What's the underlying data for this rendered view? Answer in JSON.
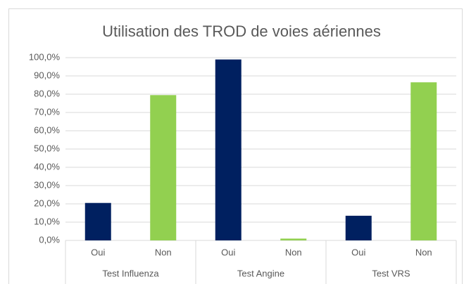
{
  "chart_data": {
    "type": "bar",
    "title": "Utilisation des TROD de voies aériennes",
    "categories": [
      "Oui",
      "Non",
      "Oui",
      "Non",
      "Oui",
      "Non"
    ],
    "groups": [
      "Test Influenza",
      "Test Angine",
      "Test VRS"
    ],
    "values": [
      20.5,
      79.5,
      99,
      1,
      13.5,
      86.5
    ],
    "colors": [
      "#002060",
      "#92d050",
      "#002060",
      "#92d050",
      "#002060",
      "#92d050"
    ],
    "ylim": [
      0,
      100
    ],
    "yticks": [
      {
        "value": 0,
        "label": "0,0%"
      },
      {
        "value": 10,
        "label": "10,0%"
      },
      {
        "value": 20,
        "label": "20,0%"
      },
      {
        "value": 30,
        "label": "30,0%"
      },
      {
        "value": 40,
        "label": "40,0%"
      },
      {
        "value": 50,
        "label": "50,0%"
      },
      {
        "value": 60,
        "label": "60,0%"
      },
      {
        "value": 70,
        "label": "70,0%"
      },
      {
        "value": 80,
        "label": "80,0%"
      },
      {
        "value": 90,
        "label": "90,0%"
      },
      {
        "value": 100,
        "label": "100,0%"
      }
    ],
    "grid": true
  }
}
